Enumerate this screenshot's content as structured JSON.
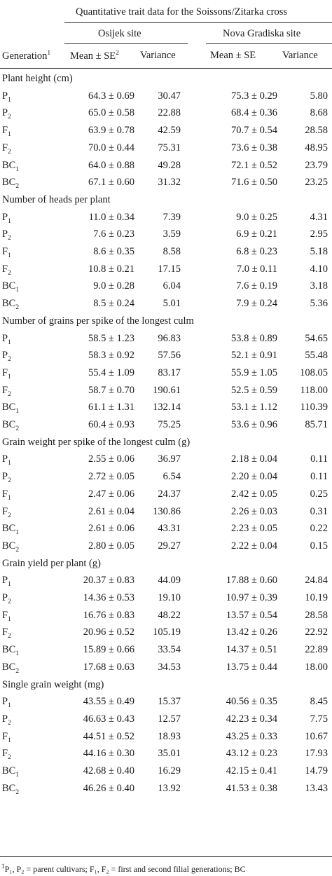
{
  "header": {
    "super_title": "Quantitative trait data for the Soissons/Zitarka cross",
    "site1": "Osijek site",
    "site2": "Nova Gradiska site",
    "col_generation": "Generation",
    "col_generation_sup": "1",
    "col_mean": "Mean ± SE",
    "col_mean_sup": "2",
    "col_variance": "Variance"
  },
  "sections": [
    {
      "title": "Plant height (cm)",
      "rows": [
        {
          "gen": "P",
          "sub": "1",
          "m1": "64.3 ± 0.69",
          "v1": "30.47",
          "m2": "75.3 ± 0.29",
          "v2": "5.80"
        },
        {
          "gen": "P",
          "sub": "2",
          "m1": "65.0 ± 0.58",
          "v1": "22.88",
          "m2": "68.4 ± 0.36",
          "v2": "8.68"
        },
        {
          "gen": "F",
          "sub": "1",
          "m1": "63.9 ± 0.78",
          "v1": "42.59",
          "m2": "70.7 ± 0.54",
          "v2": "28.58"
        },
        {
          "gen": "F",
          "sub": "2",
          "m1": "70.0 ± 0.44",
          "v1": "75.31",
          "m2": "73.6 ± 0.38",
          "v2": "48.95"
        },
        {
          "gen": "BC",
          "sub": "1",
          "m1": "64.0 ± 0.88",
          "v1": "49.28",
          "m2": "72.1 ± 0.52",
          "v2": "23.79"
        },
        {
          "gen": "BC",
          "sub": "2",
          "m1": "67.1 ± 0.60",
          "v1": "31.32",
          "m2": "71.6 ± 0.50",
          "v2": "23.25"
        }
      ]
    },
    {
      "title": "Number of heads per plant",
      "rows": [
        {
          "gen": "P",
          "sub": "1",
          "m1": "11.0 ± 0.34",
          "v1": "7.39",
          "m2": "9.0 ± 0.25",
          "v2": "4.31"
        },
        {
          "gen": "P",
          "sub": "2",
          "m1": "7.6 ± 0.23",
          "v1": "3.59",
          "m2": "6.9 ± 0.21",
          "v2": "2.95"
        },
        {
          "gen": "F",
          "sub": "1",
          "m1": "8.6 ± 0.35",
          "v1": "8.58",
          "m2": "6.8 ± 0.23",
          "v2": "5.18"
        },
        {
          "gen": "F",
          "sub": "2",
          "m1": "10.8 ± 0.21",
          "v1": "17.15",
          "m2": "7.0 ± 0.11",
          "v2": "4.10"
        },
        {
          "gen": "BC",
          "sub": "1",
          "m1": "9.0 ± 0.28",
          "v1": "6.04",
          "m2": "7.6 ± 0.19",
          "v2": "3.18"
        },
        {
          "gen": "BC",
          "sub": "2",
          "m1": "8.5 ± 0.24",
          "v1": "5.01",
          "m2": "7.9 ± 0.24",
          "v2": "5.36"
        }
      ]
    },
    {
      "title": "Number of grains per spike of the longest culm",
      "rows": [
        {
          "gen": "P",
          "sub": "1",
          "m1": "58.5 ± 1.23",
          "v1": "96.83",
          "m2": "53.8 ± 0.89",
          "v2": "54.65"
        },
        {
          "gen": "P",
          "sub": "2",
          "m1": "58.3 ± 0.92",
          "v1": "57.56",
          "m2": "52.1 ± 0.91",
          "v2": "55.48"
        },
        {
          "gen": "F",
          "sub": "1",
          "m1": "55.4 ± 1.09",
          "v1": "83.17",
          "m2": "55.9 ± 1.05",
          "v2": "108.05"
        },
        {
          "gen": "F",
          "sub": "2",
          "m1": "58.7 ± 0.70",
          "v1": "190.61",
          "m2": "52.5 ± 0.59",
          "v2": "118.00"
        },
        {
          "gen": "BC",
          "sub": "1",
          "m1": "61.1 ± 1.31",
          "v1": "132.14",
          "m2": "53.1 ± 1.12",
          "v2": "110.39"
        },
        {
          "gen": "BC",
          "sub": "2",
          "m1": "60.4 ± 0.93",
          "v1": "75.25",
          "m2": "53.6 ± 0.96",
          "v2": "85.71"
        }
      ]
    },
    {
      "title": "Grain weight per spike of the longest culm (g)",
      "rows": [
        {
          "gen": "P",
          "sub": "1",
          "m1": "2.55 ± 0.06",
          "v1": "36.97",
          "m2": "2.18 ± 0.04",
          "v2": "0.11"
        },
        {
          "gen": "P",
          "sub": "2",
          "m1": "2.72 ± 0.05",
          "v1": "6.54",
          "m2": "2.20 ± 0.04",
          "v2": "0.11"
        },
        {
          "gen": "F",
          "sub": "1",
          "m1": "2.47 ± 0.06",
          "v1": "24.37",
          "m2": "2.42 ± 0.05",
          "v2": "0.25"
        },
        {
          "gen": "F",
          "sub": "2",
          "m1": "2.61 ± 0.04",
          "v1": "130.86",
          "m2": "2.26 ± 0.03",
          "v2": "0.31"
        },
        {
          "gen": "BC",
          "sub": "1",
          "m1": "2.61 ± 0.06",
          "v1": "43.31",
          "m2": "2.23 ± 0.05",
          "v2": "0.22"
        },
        {
          "gen": "BC",
          "sub": "2",
          "m1": "2.80 ± 0.05",
          "v1": "29.27",
          "m2": "2.22 ± 0.04",
          "v2": "0.15"
        }
      ]
    },
    {
      "title": "Grain yield per plant (g)",
      "rows": [
        {
          "gen": "P",
          "sub": "1",
          "m1": "20.37 ± 0.83",
          "v1": "44.09",
          "m2": "17.88 ± 0.60",
          "v2": "24.84"
        },
        {
          "gen": "P",
          "sub": "2",
          "m1": "14.36 ± 0.53",
          "v1": "19.10",
          "m2": "10.97 ± 0.39",
          "v2": "10.19"
        },
        {
          "gen": "F",
          "sub": "1",
          "m1": "16.76 ± 0.83",
          "v1": "48.22",
          "m2": "13.57 ± 0.54",
          "v2": "28.58"
        },
        {
          "gen": "F",
          "sub": "2",
          "m1": "20.96 ± 0.52",
          "v1": "105.19",
          "m2": "13.42 ± 0.26",
          "v2": "22.92"
        },
        {
          "gen": "BC",
          "sub": "1",
          "m1": "15.89 ± 0.66",
          "v1": "33.54",
          "m2": "14.37 ± 0.51",
          "v2": "22.89"
        },
        {
          "gen": "BC",
          "sub": "2",
          "m1": "17.68 ± 0.63",
          "v1": "34.53",
          "m2": "13.75 ± 0.44",
          "v2": "18.00"
        }
      ]
    },
    {
      "title": "Single grain weight (mg)",
      "rows": [
        {
          "gen": "P",
          "sub": "1",
          "m1": "43.55 ± 0.49",
          "v1": "15.37",
          "m2": "40.56 ± 0.35",
          "v2": "8.45"
        },
        {
          "gen": "P",
          "sub": "2",
          "m1": "46.63 ± 0.43",
          "v1": "12.57",
          "m2": "42.23 ± 0.34",
          "v2": "7.75"
        },
        {
          "gen": "F",
          "sub": "1",
          "m1": "44.51 ± 0.52",
          "v1": "18.93",
          "m2": "43.25 ± 0.33",
          "v2": "10.67"
        },
        {
          "gen": "F",
          "sub": "2",
          "m1": "44.16 ± 0.30",
          "v1": "35.01",
          "m2": "43.12 ± 0.23",
          "v2": "17.93"
        },
        {
          "gen": "BC",
          "sub": "1",
          "m1": "42.68 ± 0.40",
          "v1": "16.29",
          "m2": "42.15 ± 0.41",
          "v2": "14.79"
        },
        {
          "gen": "BC",
          "sub": "2",
          "m1": "46.26 ± 0.40",
          "v1": "13.92",
          "m2": "41.53 ± 0.38",
          "v2": "13.43"
        }
      ]
    }
  ],
  "footnote": {
    "sup": "1",
    "text": "P₁, P₂ = parent cultivars; F₁, F₂ = first and second filial generations; BC"
  }
}
